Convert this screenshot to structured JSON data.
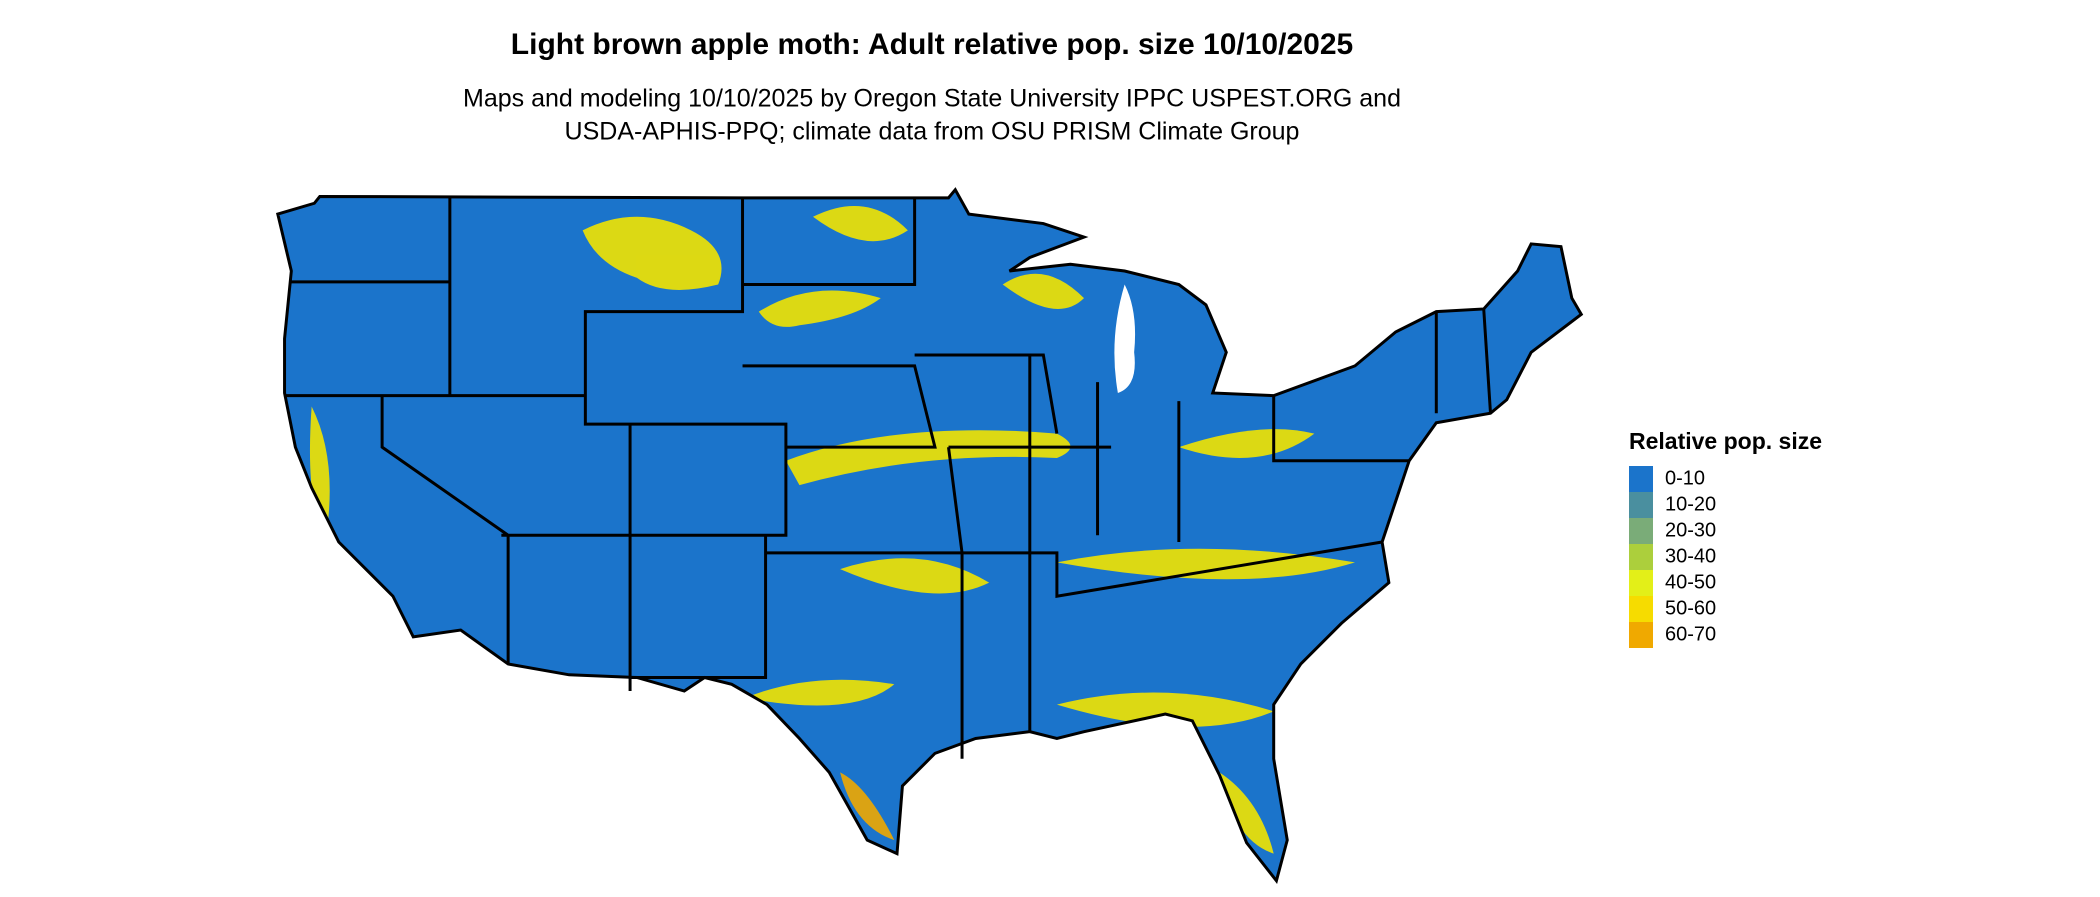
{
  "header": {
    "title": "Light brown apple moth: Adult relative pop. size 10/10/2025",
    "subtitle_lines": [
      "Maps and modeling 10/10/2025 by Oregon State University IPPC USPEST.ORG and",
      "USDA-APHIS-PPQ; climate data from OSU PRISM Climate Group"
    ]
  },
  "legend": {
    "title": "Relative pop. size",
    "items": [
      {
        "label": "0-10",
        "color": "#1b74cb"
      },
      {
        "label": "10-20",
        "color": "#4a8f9f"
      },
      {
        "label": "20-30",
        "color": "#7aac78"
      },
      {
        "label": "30-40",
        "color": "#accf3c"
      },
      {
        "label": "40-50",
        "color": "#e3ef18"
      },
      {
        "label": "50-60",
        "color": "#f6dc00"
      },
      {
        "label": "60-70",
        "color": "#f0a900"
      }
    ]
  }
}
